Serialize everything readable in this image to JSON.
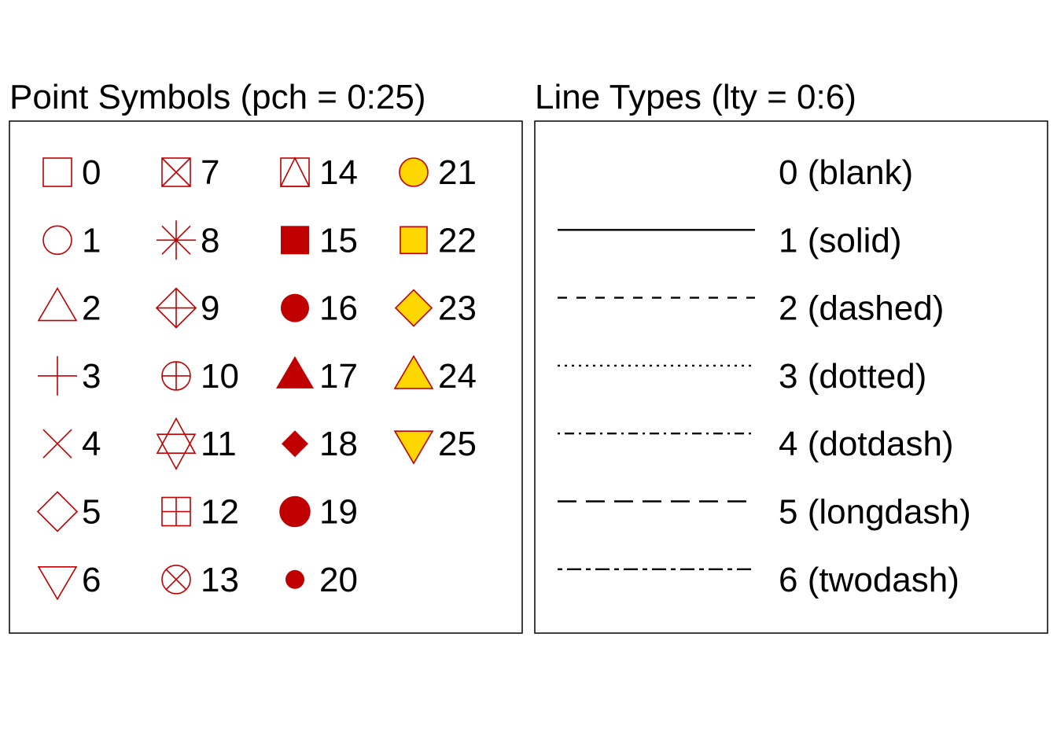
{
  "colors": {
    "symbol_stroke": "#c00000",
    "symbol_fill_solid": "#c00000",
    "symbol_bg_fill": "#ffd700",
    "line": "#000000",
    "text": "#000000",
    "frame": "#000000"
  },
  "point_symbols": {
    "title": "Point Symbols (pch = 0:25)",
    "items": [
      {
        "pch": 0,
        "label": "0",
        "shape": "open-square"
      },
      {
        "pch": 1,
        "label": "1",
        "shape": "open-circle"
      },
      {
        "pch": 2,
        "label": "2",
        "shape": "open-triangle-up"
      },
      {
        "pch": 3,
        "label": "3",
        "shape": "plus"
      },
      {
        "pch": 4,
        "label": "4",
        "shape": "cross"
      },
      {
        "pch": 5,
        "label": "5",
        "shape": "open-diamond"
      },
      {
        "pch": 6,
        "label": "6",
        "shape": "open-triangle-down"
      },
      {
        "pch": 7,
        "label": "7",
        "shape": "square-cross"
      },
      {
        "pch": 8,
        "label": "8",
        "shape": "asterisk"
      },
      {
        "pch": 9,
        "label": "9",
        "shape": "diamond-plus"
      },
      {
        "pch": 10,
        "label": "10",
        "shape": "circle-plus"
      },
      {
        "pch": 11,
        "label": "11",
        "shape": "star-of-david"
      },
      {
        "pch": 12,
        "label": "12",
        "shape": "square-plus"
      },
      {
        "pch": 13,
        "label": "13",
        "shape": "circle-cross"
      },
      {
        "pch": 14,
        "label": "14",
        "shape": "square-triangle"
      },
      {
        "pch": 15,
        "label": "15",
        "shape": "filled-square"
      },
      {
        "pch": 16,
        "label": "16",
        "shape": "filled-circle"
      },
      {
        "pch": 17,
        "label": "17",
        "shape": "filled-triangle-up"
      },
      {
        "pch": 18,
        "label": "18",
        "shape": "filled-diamond-small"
      },
      {
        "pch": 19,
        "label": "19",
        "shape": "filled-circle-large"
      },
      {
        "pch": 20,
        "label": "20",
        "shape": "filled-circle-small"
      },
      {
        "pch": 21,
        "label": "21",
        "shape": "bg-circle"
      },
      {
        "pch": 22,
        "label": "22",
        "shape": "bg-square"
      },
      {
        "pch": 23,
        "label": "23",
        "shape": "bg-diamond"
      },
      {
        "pch": 24,
        "label": "24",
        "shape": "bg-triangle-up"
      },
      {
        "pch": 25,
        "label": "25",
        "shape": "bg-triangle-down"
      }
    ]
  },
  "line_types": {
    "title": "Line Types (lty = 0:6)",
    "items": [
      {
        "lty": 0,
        "label": "0 (blank)",
        "style": "blank"
      },
      {
        "lty": 1,
        "label": "1 (solid)",
        "style": "solid"
      },
      {
        "lty": 2,
        "label": "2 (dashed)",
        "style": "dashed"
      },
      {
        "lty": 3,
        "label": "3 (dotted)",
        "style": "dotted"
      },
      {
        "lty": 4,
        "label": "4 (dotdash)",
        "style": "dotdash"
      },
      {
        "lty": 5,
        "label": "5 (longdash)",
        "style": "longdash"
      },
      {
        "lty": 6,
        "label": "6 (twodash)",
        "style": "twodash"
      }
    ]
  }
}
